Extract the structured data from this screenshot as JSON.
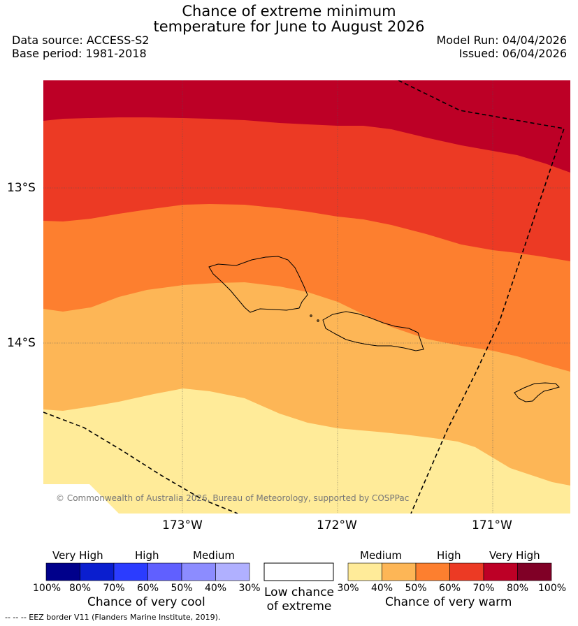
{
  "title": {
    "line1": "Chance of extreme minimum",
    "line2": "temperature for June to August 2026"
  },
  "info": {
    "data_source": "Data source: ACCESS-S2",
    "base_period": "Base period: 1981-2018",
    "model_run": "Model Run: 04/04/2026",
    "issued": "Issued: 06/04/2026"
  },
  "map": {
    "lat_labels": [
      "13°S",
      "14°S"
    ],
    "lon_labels": [
      "173°W",
      "172°W",
      "171°W"
    ],
    "copyright": "© Commonwealth of Australia 2026, Bureau of Meteorology, supported by COSPPac",
    "colors": {
      "very_high_warm": "#bd0026",
      "high_warm": "#ec3a24",
      "medium_high_warm": "#fd7f2f",
      "medium_warm": "#fdb656",
      "low_warm": "#ffeb99",
      "no_data": "#ffffff"
    }
  },
  "legend": {
    "cool": {
      "categories": [
        "Very High",
        "High",
        "Medium"
      ],
      "ticks": [
        "100%",
        "80%",
        "70%",
        "60%",
        "50%",
        "40%",
        "30%"
      ],
      "title": "Chance of very cool",
      "colors": [
        "#00008b",
        "#0a1ecf",
        "#2b3cff",
        "#6060ff",
        "#8c8cff",
        "#b0b0ff"
      ]
    },
    "low": {
      "line1": "Low chance",
      "line2": "of extreme"
    },
    "warm": {
      "categories": [
        "Medium",
        "High",
        "Very High"
      ],
      "ticks": [
        "30%",
        "40%",
        "50%",
        "60%",
        "70%",
        "80%",
        "100%"
      ],
      "title": "Chance of very warm",
      "colors": [
        "#ffeb99",
        "#fdb656",
        "#fd7f2f",
        "#ec3a24",
        "#bd0026",
        "#800026"
      ]
    }
  },
  "footer": "--  --  -- EEZ border V11 (Flanders Marine Institute, 2019)."
}
